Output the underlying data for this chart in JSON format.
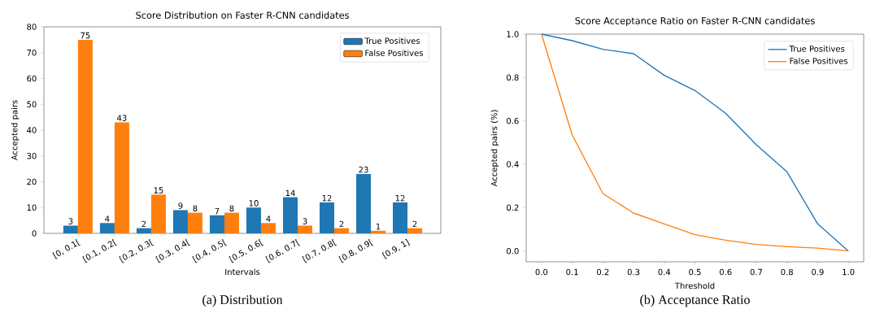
{
  "chart_data": [
    {
      "type": "bar",
      "title": "Score Distribution on Faster R-CNN candidates",
      "xlabel": "Intervals",
      "ylabel": "Accepted pairs",
      "categories": [
        "[0, 0.1[",
        "[0.1, 0.2[",
        "[0.2, 0.3[",
        "[0.3, 0.4[",
        "[0.4, 0.5[",
        "[0.5, 0.6[",
        "[0.6, 0.7[",
        "[0.7, 0.8[",
        "[0.8, 0.9[",
        "[0.9, 1]"
      ],
      "series": [
        {
          "name": "True Positives",
          "color": "#1f77b4",
          "values": [
            3,
            4,
            2,
            9,
            7,
            10,
            14,
            12,
            23,
            12
          ]
        },
        {
          "name": "False Positives",
          "color": "#ff7f0e",
          "values": [
            75,
            43,
            15,
            8,
            8,
            4,
            3,
            2,
            1,
            2
          ]
        }
      ],
      "ylim": [
        0,
        80
      ],
      "yticks": [
        0,
        10,
        20,
        30,
        40,
        50,
        60,
        70,
        80
      ],
      "data_labels": true,
      "legend": "top right",
      "grid": false,
      "annotations": [
        "(a) Distribution"
      ]
    },
    {
      "type": "line",
      "title": "Score Acceptance Ratio on Faster R-CNN candidates",
      "xlabel": "Threshold",
      "ylabel": "Accepted pairs (%)",
      "x": [
        0,
        0.1,
        0.2,
        0.3,
        0.4,
        0.5,
        0.6,
        0.7,
        0.8,
        0.9,
        1.0
      ],
      "series": [
        {
          "name": "True Positives",
          "color": "#1f77b4",
          "values": [
            1.0,
            0.97,
            0.93,
            0.91,
            0.81,
            0.74,
            0.635,
            0.49,
            0.365,
            0.125,
            0.0
          ]
        },
        {
          "name": "False Positives",
          "color": "#ff7f0e",
          "values": [
            1.0,
            0.535,
            0.265,
            0.175,
            0.125,
            0.075,
            0.05,
            0.03,
            0.02,
            0.013,
            0.0
          ]
        }
      ],
      "xlim": [
        -0.05,
        1.05
      ],
      "ylim": [
        -0.05,
        1.0
      ],
      "xticks": [
        {
          "value": 0,
          "label": "0.0"
        },
        0.1,
        0.2,
        0.3,
        0.4,
        0.5,
        0.6,
        0.7,
        0.8,
        0.9,
        {
          "value": 1.0,
          "label": "1.0"
        }
      ],
      "yticks": [
        {
          "value": 0,
          "label": "0.0"
        },
        0.2,
        0.4,
        0.6,
        0.8,
        {
          "value": 1.0,
          "label": "1.0"
        }
      ],
      "legend": "top right",
      "grid": false,
      "marker": "none",
      "line_style": "solid",
      "annotations": [
        "(b) Acceptance Ratio"
      ]
    }
  ]
}
